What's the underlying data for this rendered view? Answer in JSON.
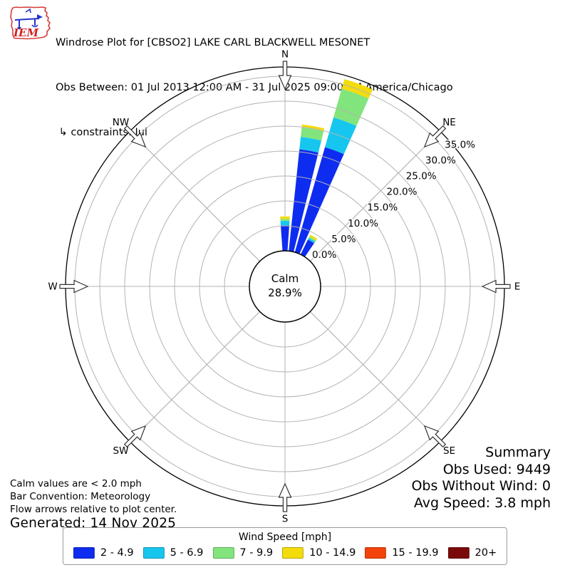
{
  "header": {
    "title": "Windrose Plot for [CBSO2] LAKE CARL BLACKWELL MESONET",
    "subtitle": "Obs Between: 01 Jul 2013 12:00 AM - 31 Jul 2025 09:00 PM America/Chicago",
    "constraints": " ↳ constraints: Jul",
    "logo_text": "IEM"
  },
  "plot": {
    "compass_labels": [
      "N",
      "NE",
      "E",
      "SE",
      "S",
      "SW",
      "W",
      "NW"
    ],
    "ring_ticks_pct": [
      0,
      5,
      10,
      15,
      20,
      25,
      30,
      35
    ],
    "ring_tick_labels": [
      "0.0%",
      "5.0%",
      "10.0%",
      "15.0%",
      "20.0%",
      "25.0%",
      "30.0%",
      "35.0%"
    ],
    "calm": {
      "label": "Calm",
      "value": "28.9%"
    }
  },
  "chart_data": {
    "type": "windrose-polar-stacked-bar",
    "units": "percent frequency by wind speed [mph]",
    "calm_pct": 28.9,
    "direction_bins_deg": [
      0,
      10,
      20,
      30
    ],
    "bar_width_deg": 8,
    "series": [
      {
        "label": "2 - 4.9",
        "color": "#0e2cf0",
        "values_pct": [
          5.1,
          20.5,
          21.9,
          3.3
        ]
      },
      {
        "label": "5 - 6.9",
        "color": "#17c6ee",
        "values_pct": [
          0.9,
          2.5,
          6.2,
          0.4
        ]
      },
      {
        "label": "7 - 9.9",
        "color": "#82e47d",
        "values_pct": [
          0.4,
          1.9,
          6.0,
          0.3
        ]
      },
      {
        "label": "10 - 14.9",
        "color": "#f4dc0b",
        "values_pct": [
          0.5,
          0.6,
          2.0,
          0.4
        ]
      },
      {
        "label": "15 - 19.9",
        "color": "#f4420b",
        "values_pct": [
          0,
          0,
          0,
          0
        ]
      },
      {
        "label": "20+",
        "color": "#7a0a0a",
        "values_pct": [
          0,
          0,
          0,
          0
        ]
      }
    ],
    "r_axis": {
      "ticks_pct": [
        0,
        5,
        10,
        15,
        20,
        25,
        30,
        35
      ],
      "tick_label_azimuth_deg": 51
    },
    "grid": true,
    "legend_position": "bottom"
  },
  "annotations": {
    "line1": "Calm values are < 2.0 mph",
    "line2": "Bar Convention: Meteorology",
    "line3": "Flow arrows relative to plot center.",
    "generated": "Generated: 14 Nov 2025"
  },
  "summary": {
    "title": "Summary",
    "obs_used": "Obs Used: 9449",
    "obs_without_wind": "Obs Without Wind: 0",
    "avg_speed": "Avg Speed: 3.8 mph"
  },
  "legend": {
    "title": "Wind Speed [mph]",
    "items": [
      {
        "label": "2 - 4.9",
        "color": "#0e2cf0"
      },
      {
        "label": "5 - 6.9",
        "color": "#17c6ee"
      },
      {
        "label": "7 - 9.9",
        "color": "#82e47d"
      },
      {
        "label": "10 - 14.9",
        "color": "#f4dc0b"
      },
      {
        "label": "15 - 19.9",
        "color": "#f4420b"
      },
      {
        "label": "20+",
        "color": "#7a0a0a"
      }
    ]
  }
}
